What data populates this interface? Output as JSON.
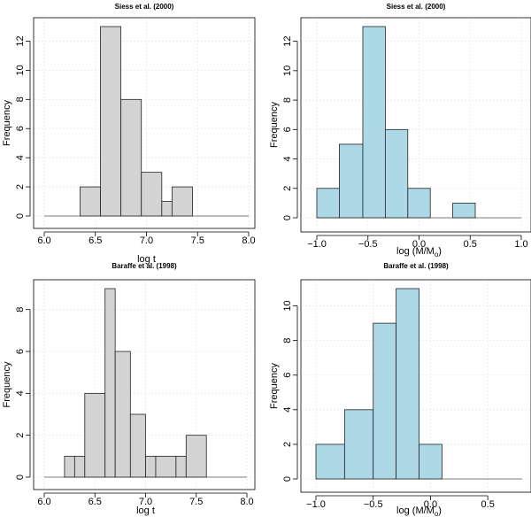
{
  "chart_data": [
    {
      "type": "bar",
      "title": "Siess et al. (2000)",
      "xlabel": "log t",
      "ylabel": "Frequency",
      "fill": "#d3d3d3",
      "xlim": [
        6.0,
        8.0
      ],
      "ylim": [
        0,
        13
      ],
      "xticks": [
        6.0,
        6.5,
        7.0,
        7.5,
        8.0
      ],
      "xtick_labels": [
        "6.0",
        "6.5",
        "7.0",
        "7.5",
        "8.0"
      ],
      "yticks": [
        0,
        2,
        4,
        6,
        8,
        10,
        12
      ],
      "ytick_labels": [
        "0",
        "2",
        "4",
        "6",
        "8",
        "10",
        "12"
      ],
      "bin_edges": [
        6.35,
        6.55,
        6.75,
        6.95,
        7.15,
        7.25,
        7.45
      ],
      "values": [
        2,
        13,
        8,
        3,
        1,
        2
      ]
    },
    {
      "type": "bar",
      "title": "Siess et al. (2000)",
      "xlabel": "log (M/M",
      "xlabel_sub": "o",
      "xlabel_end": ")",
      "ylabel": "Frequency",
      "fill": "#add8e6",
      "xlim": [
        -1.0,
        1.0
      ],
      "ylim": [
        0,
        13
      ],
      "xticks": [
        -1.0,
        -0.5,
        0.0,
        0.5,
        1.0
      ],
      "xtick_labels": [
        "−1.0",
        "−0.5",
        "0.0",
        "0.5",
        "1.0"
      ],
      "yticks": [
        0,
        2,
        4,
        6,
        8,
        10,
        12
      ],
      "ytick_labels": [
        "0",
        "2",
        "4",
        "6",
        "8",
        "10",
        "12"
      ],
      "bin_edges": [
        -1.0,
        -0.78,
        -0.55,
        -0.33,
        -0.11,
        0.11,
        0.33,
        0.55
      ],
      "values": [
        2,
        5,
        13,
        6,
        2,
        0,
        1
      ]
    },
    {
      "type": "bar",
      "title": "Baraffe et al. (1998)",
      "xlabel": "log t",
      "ylabel": "Frequency",
      "fill": "#d3d3d3",
      "xlim": [
        6.0,
        8.0
      ],
      "ylim": [
        0,
        9
      ],
      "xticks": [
        6.0,
        6.5,
        7.0,
        7.5,
        8.0
      ],
      "xtick_labels": [
        "6.0",
        "6.5",
        "7.0",
        "7.5",
        "8.0"
      ],
      "yticks": [
        0,
        2,
        4,
        6,
        8
      ],
      "ytick_labels": [
        "0",
        "2",
        "4",
        "6",
        "8"
      ],
      "bin_edges": [
        6.2,
        6.3,
        6.4,
        6.6,
        6.7,
        6.85,
        7.0,
        7.1,
        7.3,
        7.4,
        7.6,
        7.7
      ],
      "values": [
        1,
        1,
        4,
        9,
        6,
        3,
        1,
        1,
        1,
        2,
        0
      ]
    },
    {
      "type": "bar",
      "title": "Baraffe et al. (1998)",
      "xlabel": "log (M/M",
      "xlabel_sub": "o",
      "xlabel_end": ")",
      "ylabel": "Frequency",
      "fill": "#add8e6",
      "xlim": [
        -1.0,
        0.8
      ],
      "ylim": [
        0,
        11
      ],
      "xticks": [
        -1.0,
        -0.5,
        0.0,
        0.5
      ],
      "xtick_labels": [
        "−1.0",
        "−0.5",
        "0.0",
        "0.5"
      ],
      "yticks": [
        0,
        2,
        4,
        6,
        8,
        10
      ],
      "ytick_labels": [
        "0",
        "2",
        "4",
        "6",
        "8",
        "10"
      ],
      "bin_edges": [
        -1.0,
        -0.75,
        -0.5,
        -0.3,
        -0.1,
        0.1,
        0.3,
        0.5,
        0.75
      ],
      "values": [
        2,
        4,
        9,
        11,
        2,
        0,
        0,
        0
      ]
    }
  ]
}
